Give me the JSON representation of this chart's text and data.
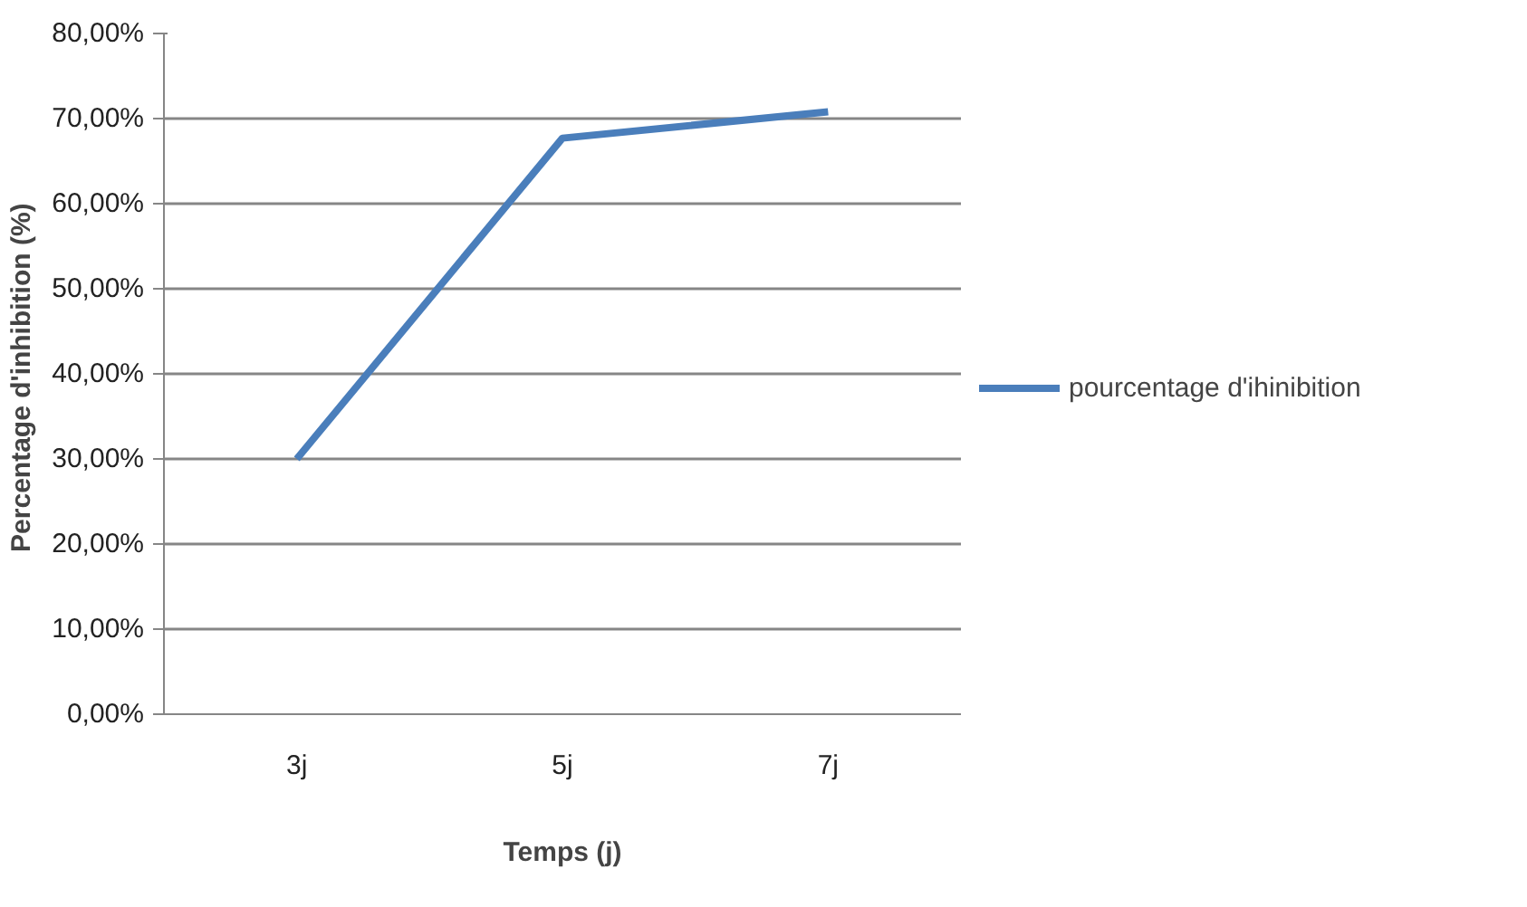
{
  "chart_data": {
    "type": "line",
    "xlabel": "Temps (j)",
    "ylabel": "Percentage d'inhibition  (%)",
    "categories": [
      "3j",
      "5j",
      "7j"
    ],
    "series": [
      {
        "name": "pourcentage d'ihinibition",
        "color": "#4a7ebb",
        "values": [
          0.3,
          0.677,
          0.708
        ]
      }
    ],
    "ylim": [
      0,
      0.8
    ],
    "yticks": [
      {
        "value": 0,
        "label": "0,00%"
      },
      {
        "value": 0.1,
        "label": "10,00%"
      },
      {
        "value": 0.2,
        "label": "20,00%"
      },
      {
        "value": 0.3,
        "label": "30,00%"
      },
      {
        "value": 0.4,
        "label": "40,00%"
      },
      {
        "value": 0.5,
        "label": "50,00%"
      },
      {
        "value": 0.6,
        "label": "60,00%"
      },
      {
        "value": 0.7,
        "label": "70,00%"
      },
      {
        "value": 0.8,
        "label": "80,00%"
      }
    ],
    "grid": "y",
    "legend": "right",
    "marker": "none",
    "line_style": "solid"
  }
}
